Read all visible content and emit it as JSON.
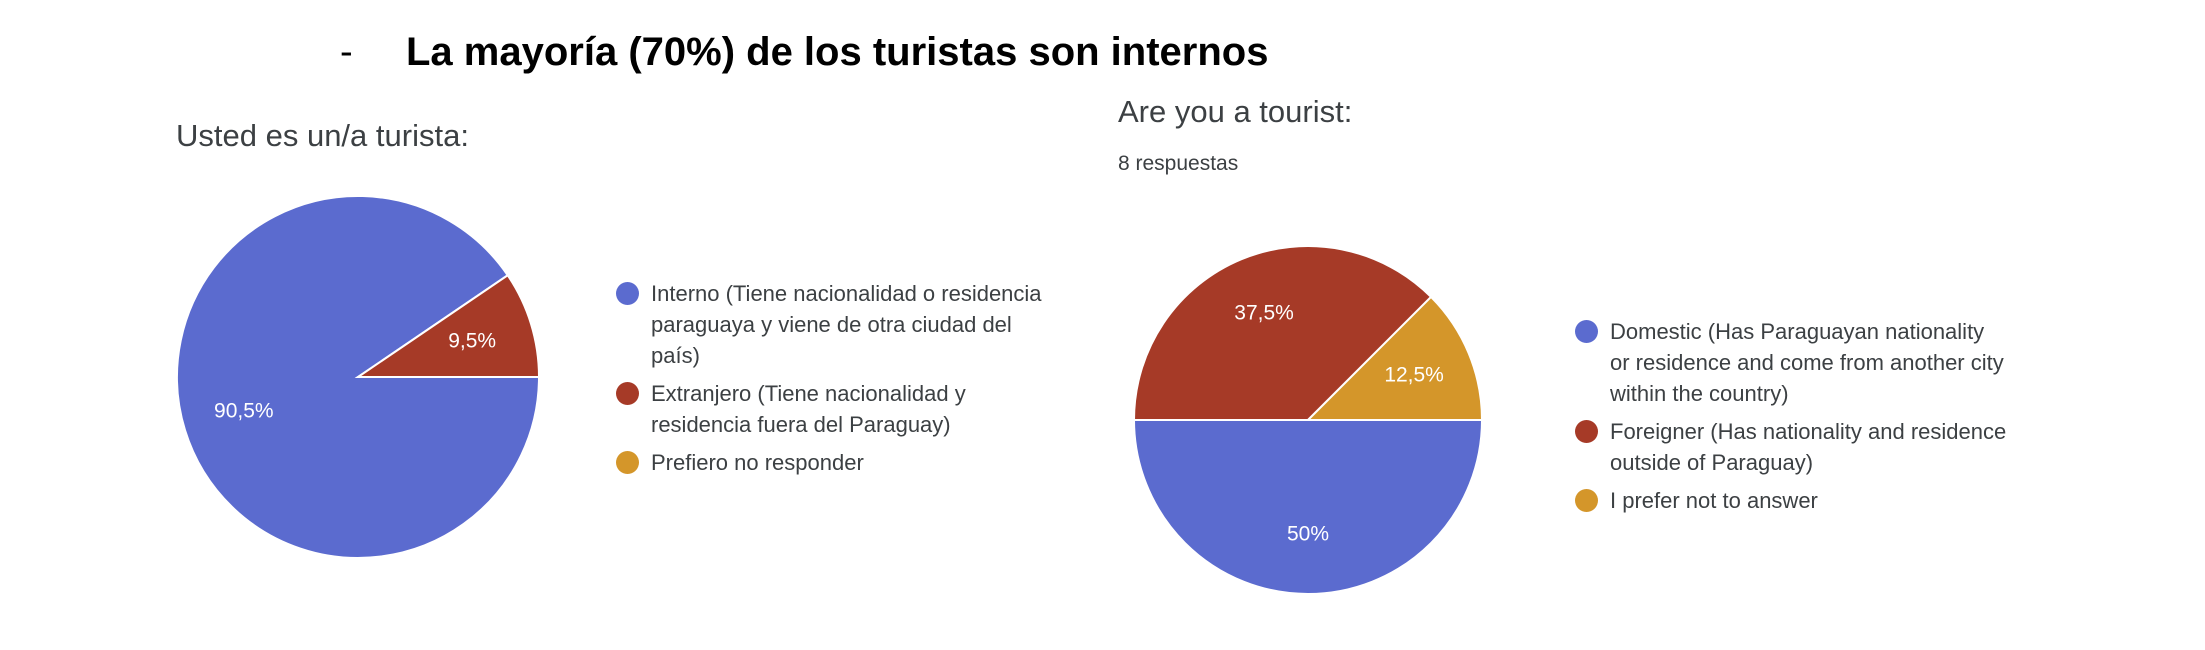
{
  "headline": {
    "bullet": "-",
    "text": "La mayoría (70%) de los turistas son internos"
  },
  "colors": {
    "blue": "#5b6bcf",
    "red": "#a63a27",
    "orange": "#d4962a"
  },
  "chart_data": [
    {
      "type": "pie",
      "title": "Usted es un/a turista:",
      "categories": [
        "Interno (Tiene nacionalidad o residencia\nparaguaya y viene de otra ciudad del\npaís)",
        "Extranjero (Tiene nacionalidad y\nresidencia fuera del Paraguay)",
        "Prefiero no responder"
      ],
      "values": [
        90.5,
        9.5,
        0
      ],
      "labels": [
        "90,5%",
        "9,5%",
        ""
      ],
      "colors": [
        "#5b6bcf",
        "#a63a27",
        "#d4962a"
      ],
      "legend": "right"
    },
    {
      "type": "pie",
      "title": "Are you a tourist:",
      "subtitle": "8 respuestas",
      "categories": [
        "Domestic (Has Paraguayan nationality\nor residence and come from another city\nwithin the country)",
        "Foreigner (Has nationality and residence\noutside of Paraguay)",
        "I prefer not to answer"
      ],
      "values": [
        50,
        37.5,
        12.5
      ],
      "labels": [
        "50%",
        "37,5%",
        "12,5%"
      ],
      "colors": [
        "#5b6bcf",
        "#a63a27",
        "#d4962a"
      ],
      "legend": "right"
    }
  ]
}
